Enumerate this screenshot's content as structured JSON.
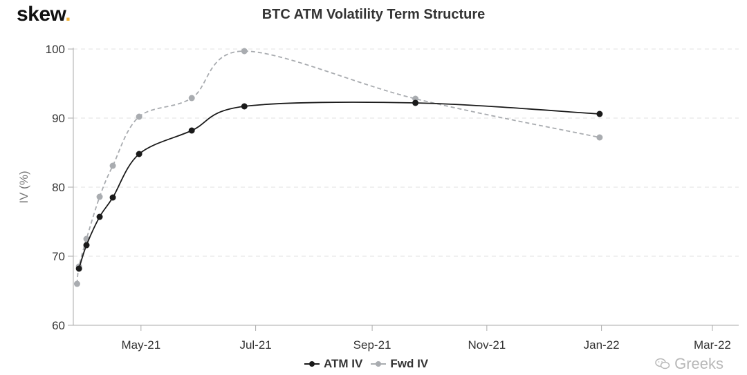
{
  "header": {
    "logo_text": "skew",
    "logo_dot": ".",
    "title": "BTC ATM Volatility Term Structure"
  },
  "watermark": {
    "icon": "wechat-icon",
    "text": "Greeks"
  },
  "colors": {
    "atm": "#1a1a1a",
    "fwd": "#a9acb0",
    "grid": "#e1e1e1",
    "logo_dot": "#f2b233"
  },
  "chart_data": {
    "type": "line",
    "title": "BTC ATM Volatility Term Structure",
    "ylabel": "IV (%)",
    "xlabel": "",
    "ylim": [
      60,
      100
    ],
    "yticks": [
      60,
      70,
      80,
      90,
      100
    ],
    "xlim": [
      "2021-03-26",
      "2022-03-15"
    ],
    "xticks": [
      {
        "date": "2021-05-01",
        "label": "May-21"
      },
      {
        "date": "2021-07-01",
        "label": "Jul-21"
      },
      {
        "date": "2021-09-01",
        "label": "Sep-21"
      },
      {
        "date": "2021-11-01",
        "label": "Nov-21"
      },
      {
        "date": "2022-01-01",
        "label": "Jan-22"
      },
      {
        "date": "2022-03-01",
        "label": "Mar-22"
      }
    ],
    "grid": "horizontal dashed",
    "legend_position": "bottom-center",
    "series": [
      {
        "name": "ATM IV",
        "style": "solid",
        "points": [
          {
            "x": "2021-03-29",
            "y": 68.2
          },
          {
            "x": "2021-04-02",
            "y": 71.6
          },
          {
            "x": "2021-04-09",
            "y": 75.7
          },
          {
            "x": "2021-04-16",
            "y": 78.5
          },
          {
            "x": "2021-04-30",
            "y": 84.8
          },
          {
            "x": "2021-05-28",
            "y": 88.2
          },
          {
            "x": "2021-06-25",
            "y": 91.7
          },
          {
            "x": "2021-09-24",
            "y": 92.2
          },
          {
            "x": "2021-12-31",
            "y": 90.6
          }
        ]
      },
      {
        "name": "Fwd IV",
        "style": "dashed",
        "points": [
          {
            "x": "2021-03-28",
            "y": 66.0
          },
          {
            "x": "2021-03-29",
            "y": 68.5
          },
          {
            "x": "2021-04-02",
            "y": 72.5
          },
          {
            "x": "2021-04-09",
            "y": 78.6
          },
          {
            "x": "2021-04-16",
            "y": 83.1
          },
          {
            "x": "2021-04-30",
            "y": 90.2
          },
          {
            "x": "2021-05-28",
            "y": 92.9
          },
          {
            "x": "2021-06-25",
            "y": 99.7
          },
          {
            "x": "2021-09-24",
            "y": 92.8
          },
          {
            "x": "2021-12-31",
            "y": 87.2
          }
        ]
      }
    ]
  }
}
